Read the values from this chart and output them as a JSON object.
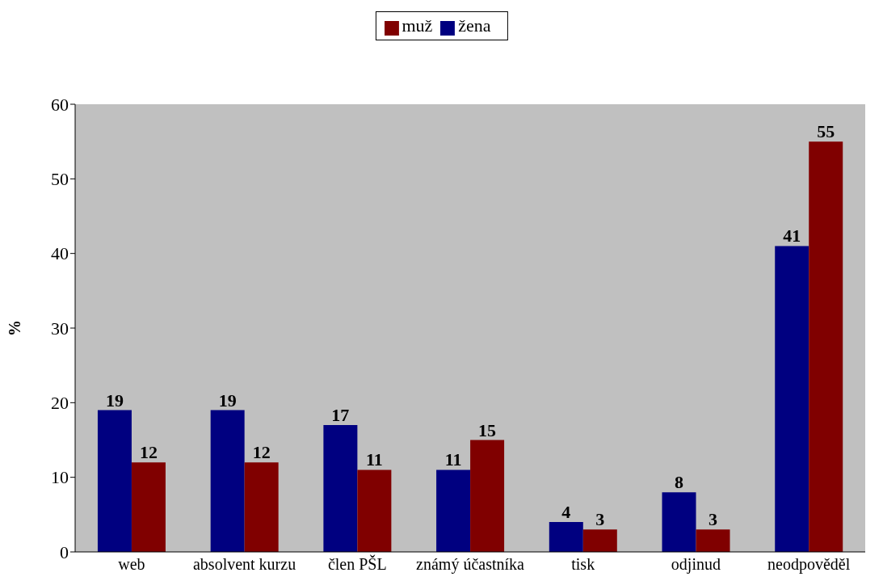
{
  "chart_data": {
    "type": "bar",
    "ylabel": "%",
    "categories": [
      "web",
      "absolvent kurzu",
      "člen PŠL",
      "známý účastníka",
      "tisk",
      "odjinud",
      "neodpověděl"
    ],
    "series": [
      {
        "name": "žena",
        "color": "#000080",
        "values": [
          19,
          19,
          17,
          11,
          4,
          8,
          41
        ]
      },
      {
        "name": "muž",
        "color": "#800000",
        "values": [
          12,
          12,
          11,
          15,
          3,
          3,
          55
        ]
      }
    ],
    "ylim": [
      0,
      60
    ],
    "yticks": [
      0,
      10,
      20,
      30,
      40,
      50,
      60
    ],
    "grid": false,
    "legend": "top",
    "data_labels": true
  }
}
